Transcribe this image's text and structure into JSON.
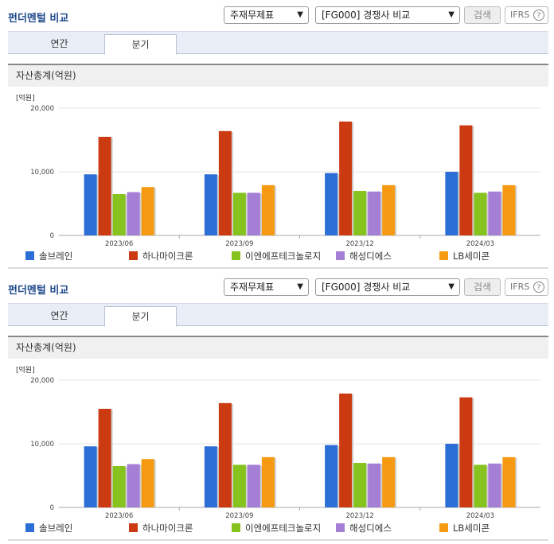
{
  "panels": [
    {
      "title": "펀더멘털 비교",
      "select1": "주재무제표",
      "select2": "[FG000] 경쟁사 비교",
      "search_label": "검색",
      "ifrs_label": "IFRS",
      "help_label": "?",
      "tabs": [
        "연간",
        "분기"
      ],
      "active_tab": "분기",
      "section_title": "자산총계(억원)"
    },
    {
      "title": "펀더멘털 비교",
      "select1": "주재무제표",
      "select2": "[FG000] 경쟁사 비교",
      "search_label": "검색",
      "ifrs_label": "IFRS",
      "help_label": "?",
      "tabs": [
        "연간",
        "분기"
      ],
      "active_tab": "분기",
      "section_title": "자산총계(억원)"
    }
  ],
  "chart_data": [
    {
      "type": "bar",
      "unit_label": "[억원]",
      "categories": [
        "2023/06",
        "2023/09",
        "2023/12",
        "2024/03"
      ],
      "yticks": [
        "0",
        "10,000",
        "20,000"
      ],
      "ylim": [
        0,
        20000
      ],
      "grid": true,
      "legend": "bottom",
      "series": [
        {
          "name": "솔브레인",
          "color": "#2b6fd6",
          "values": [
            9600,
            9600,
            9800,
            10000
          ]
        },
        {
          "name": "하나마이크론",
          "color": "#cc3a12",
          "values": [
            15500,
            16400,
            17900,
            17300
          ]
        },
        {
          "name": "이엔에프테크놀로지",
          "color": "#86c31e",
          "values": [
            6500,
            6700,
            7000,
            6700
          ]
        },
        {
          "name": "해성디에스",
          "color": "#a57fd6",
          "values": [
            6800,
            6700,
            6900,
            6900
          ]
        },
        {
          "name": "LB세미콘",
          "color": "#f59a12",
          "values": [
            7600,
            7900,
            7900,
            7900
          ]
        }
      ]
    },
    {
      "type": "bar",
      "unit_label": "[억원]",
      "categories": [
        "2023/06",
        "2023/09",
        "2023/12",
        "2024/03"
      ],
      "yticks": [
        "0",
        "10,000",
        "20,000"
      ],
      "ylim": [
        0,
        20000
      ],
      "grid": true,
      "legend": "bottom",
      "series": [
        {
          "name": "솔브레인",
          "color": "#2b6fd6",
          "values": [
            9600,
            9600,
            9800,
            10000
          ]
        },
        {
          "name": "하나마이크론",
          "color": "#cc3a12",
          "values": [
            15500,
            16400,
            17900,
            17300
          ]
        },
        {
          "name": "이엔에프테크놀로지",
          "color": "#86c31e",
          "values": [
            6500,
            6700,
            7000,
            6700
          ]
        },
        {
          "name": "해성디에스",
          "color": "#a57fd6",
          "values": [
            6800,
            6700,
            6900,
            6900
          ]
        },
        {
          "name": "LB세미콘",
          "color": "#f59a12",
          "values": [
            7600,
            7900,
            7900,
            7900
          ]
        }
      ]
    }
  ]
}
